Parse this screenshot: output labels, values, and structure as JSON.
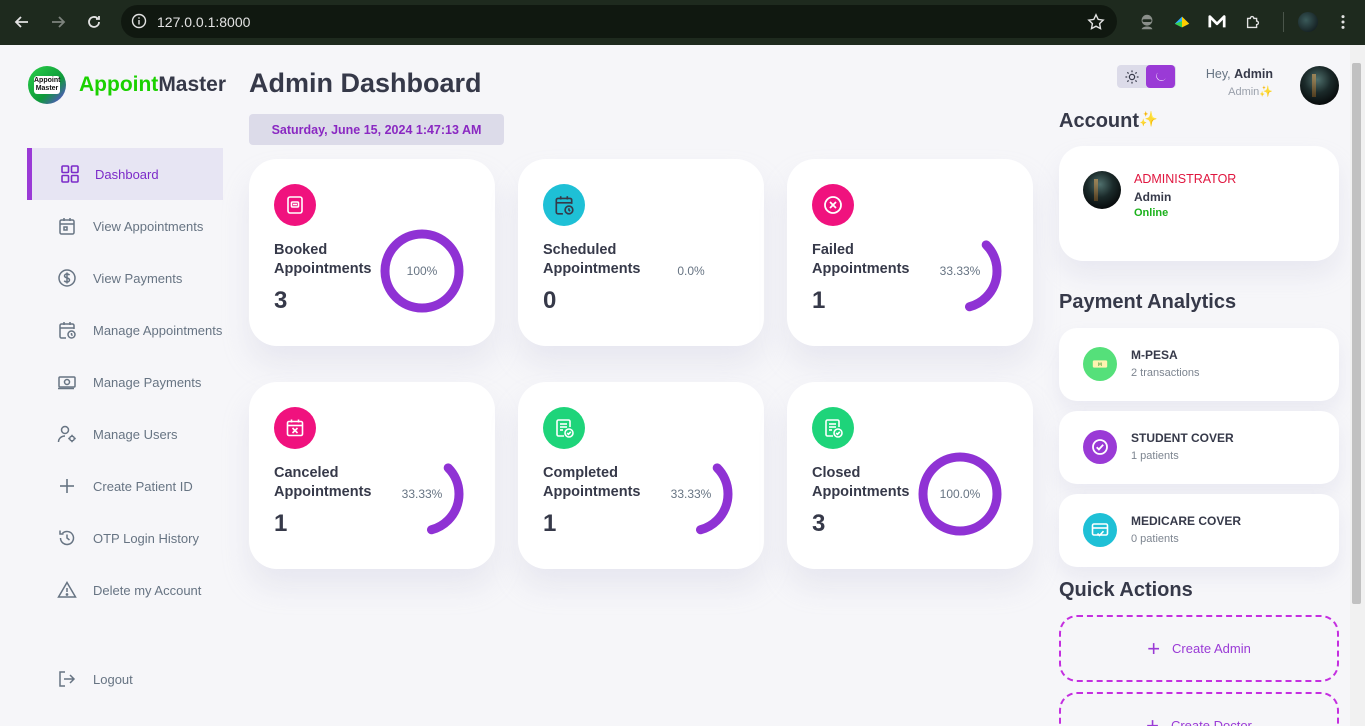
{
  "browser": {
    "url": "127.0.0.1:8000"
  },
  "app": {
    "logo_badge": "Appoint Master",
    "logo_part1": "Appoint",
    "logo_part2": "Master"
  },
  "sidebar": {
    "items": [
      {
        "label": "Dashboard",
        "icon": "grid-icon",
        "active": true
      },
      {
        "label": "View Appointments",
        "icon": "calendar-icon"
      },
      {
        "label": "View Payments",
        "icon": "dollar-circle-icon"
      },
      {
        "label": "Manage Appointments",
        "icon": "calendar-clock-icon"
      },
      {
        "label": "Manage Payments",
        "icon": "money-icon"
      },
      {
        "label": "Manage Users",
        "icon": "user-gear-icon"
      },
      {
        "label": "Create Patient ID",
        "icon": "plus-icon"
      },
      {
        "label": "OTP Login History",
        "icon": "history-icon"
      },
      {
        "label": "Delete my Account",
        "icon": "warning-icon"
      }
    ],
    "logout": "Logout"
  },
  "main": {
    "title": "Admin Dashboard",
    "datetime": "Saturday, June 15, 2024 1:47:13 AM",
    "cards": [
      {
        "label": "Booked Appointments",
        "count": "3",
        "percent_text": "100%",
        "fraction": 1.0,
        "icon_color": "#f0127e",
        "icon": "booked-icon"
      },
      {
        "label": "Scheduled Appointments",
        "count": "0",
        "percent_text": "0.0%",
        "fraction": 0.0,
        "icon_color": "#1ec0d6",
        "icon": "calendar-clock-icon"
      },
      {
        "label": "Failed Appointments",
        "count": "1",
        "percent_text": "33.33%",
        "fraction": 0.3333,
        "icon_color": "#f0127e",
        "icon": "x-circle-icon"
      },
      {
        "label": "Canceled Appointments",
        "count": "1",
        "percent_text": "33.33%",
        "fraction": 0.3333,
        "icon_color": "#f0127e",
        "icon": "calendar-x-icon"
      },
      {
        "label": "Completed Appointments",
        "count": "1",
        "percent_text": "33.33%",
        "fraction": 0.3333,
        "icon_color": "#1ed47a",
        "icon": "list-check-icon"
      },
      {
        "label": "Closed Appointments",
        "count": "3",
        "percent_text": "100.0%",
        "fraction": 1.0,
        "icon_color": "#1ed47a",
        "icon": "list-check-icon"
      }
    ]
  },
  "header": {
    "greeting": "Hey,",
    "user_name": "Admin",
    "user_role": "Admin✨"
  },
  "account": {
    "title": "Account",
    "title_emoji": "✨",
    "role": "ADMINISTRATOR",
    "name": "Admin",
    "status": "Online"
  },
  "payment_analytics": {
    "title": "Payment Analytics",
    "items": [
      {
        "name": "M-PESA",
        "sub": "2 transactions",
        "icon_color": "#55e07a",
        "icon": "mpesa-icon"
      },
      {
        "name": "STUDENT COVER",
        "sub": "1 patients",
        "icon_color": "#9a3ad6",
        "icon": "check-circle-icon"
      },
      {
        "name": "MEDICARE COVER",
        "sub": "0 patients",
        "icon_color": "#1ec0d6",
        "icon": "card-check-icon"
      }
    ]
  },
  "quick_actions": {
    "title": "Quick Actions",
    "items": [
      {
        "label": "Create Admin"
      },
      {
        "label": "Create Doctor"
      }
    ]
  },
  "colors": {
    "accent": "#9a3ad6",
    "ring": "#8f32d4",
    "brand_green": "#1bd100"
  }
}
